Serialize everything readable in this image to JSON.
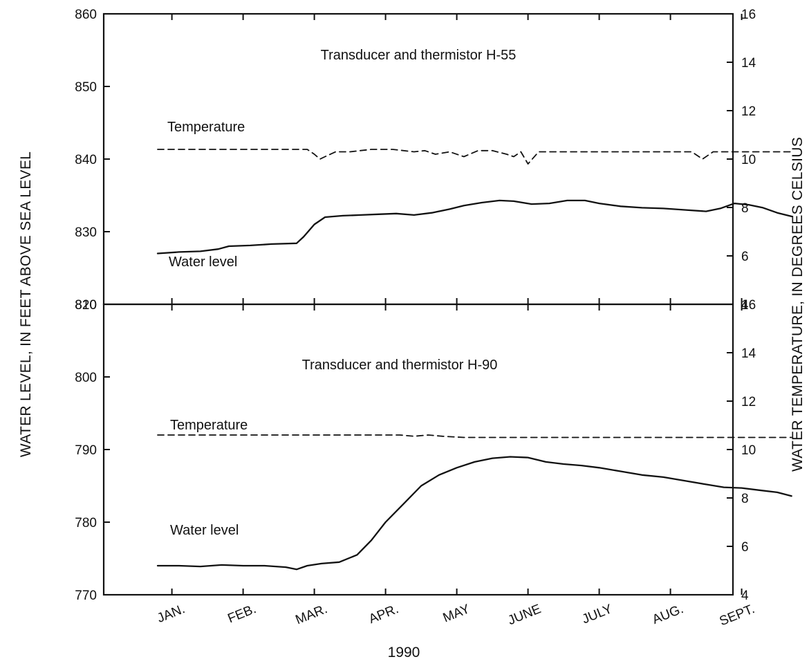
{
  "figure": {
    "left_axis_title": "WATER LEVEL, IN FEET ABOVE SEA LEVEL",
    "right_axis_title": "WATER TEMPERATURE, IN DEGREES CELSIUS",
    "year_label": "1990",
    "month_labels": [
      "JAN.",
      "FEB.",
      "MAR.",
      "APR.",
      "MAY",
      "JUNE",
      "JULY",
      "AUG.",
      "SEPT."
    ]
  },
  "chart_data": [
    {
      "type": "line",
      "title": "Transducer and thermistor H-55",
      "x_axis": {
        "type": "month",
        "range": [
          0,
          8.95
        ]
      },
      "left_axis": {
        "range": [
          820,
          860
        ],
        "ticks": [
          820,
          830,
          840,
          850,
          860
        ]
      },
      "right_axis": {
        "range": [
          4,
          16
        ],
        "ticks": [
          4,
          6,
          8,
          10,
          12,
          14,
          16
        ]
      },
      "series": [
        {
          "name": "Temperature",
          "axis": "right",
          "style": "dashed",
          "points": [
            [
              0.0,
              10.4
            ],
            [
              1.0,
              10.4
            ],
            [
              2.1,
              10.4
            ],
            [
              2.2,
              10.2
            ],
            [
              2.28,
              10.0
            ],
            [
              2.35,
              10.1
            ],
            [
              2.5,
              10.3
            ],
            [
              2.7,
              10.3
            ],
            [
              3.0,
              10.4
            ],
            [
              3.3,
              10.4
            ],
            [
              3.6,
              10.3
            ],
            [
              3.75,
              10.35
            ],
            [
              3.9,
              10.2
            ],
            [
              4.1,
              10.3
            ],
            [
              4.3,
              10.1
            ],
            [
              4.5,
              10.35
            ],
            [
              4.7,
              10.35
            ],
            [
              4.9,
              10.2
            ],
            [
              5.0,
              10.1
            ],
            [
              5.1,
              10.3
            ],
            [
              5.2,
              9.8
            ],
            [
              5.35,
              10.3
            ],
            [
              5.6,
              10.3
            ],
            [
              5.8,
              10.3
            ],
            [
              6.0,
              10.3
            ],
            [
              6.5,
              10.3
            ],
            [
              7.0,
              10.3
            ],
            [
              7.5,
              10.3
            ],
            [
              7.65,
              10.0
            ],
            [
              7.8,
              10.3
            ],
            [
              8.3,
              10.3
            ],
            [
              8.9,
              10.3
            ]
          ]
        },
        {
          "name": "Water level",
          "axis": "left",
          "style": "solid",
          "points": [
            [
              0.0,
              827.0
            ],
            [
              0.3,
              827.2
            ],
            [
              0.6,
              827.3
            ],
            [
              0.85,
              827.6
            ],
            [
              1.0,
              828.0
            ],
            [
              1.3,
              828.1
            ],
            [
              1.6,
              828.3
            ],
            [
              1.95,
              828.4
            ],
            [
              2.05,
              829.3
            ],
            [
              2.2,
              831.0
            ],
            [
              2.35,
              832.0
            ],
            [
              2.6,
              832.2
            ],
            [
              2.85,
              832.3
            ],
            [
              3.1,
              832.4
            ],
            [
              3.35,
              832.5
            ],
            [
              3.6,
              832.3
            ],
            [
              3.85,
              832.6
            ],
            [
              4.1,
              833.1
            ],
            [
              4.3,
              833.6
            ],
            [
              4.55,
              834.0
            ],
            [
              4.8,
              834.3
            ],
            [
              5.0,
              834.2
            ],
            [
              5.25,
              833.8
            ],
            [
              5.5,
              833.9
            ],
            [
              5.75,
              834.3
            ],
            [
              6.0,
              834.3
            ],
            [
              6.2,
              833.9
            ],
            [
              6.5,
              833.5
            ],
            [
              6.8,
              833.3
            ],
            [
              7.1,
              833.2
            ],
            [
              7.4,
              833.0
            ],
            [
              7.7,
              832.8
            ],
            [
              7.9,
              833.2
            ],
            [
              8.1,
              833.9
            ],
            [
              8.3,
              833.7
            ],
            [
              8.5,
              833.3
            ],
            [
              8.7,
              832.6
            ],
            [
              8.9,
              832.1
            ]
          ]
        }
      ]
    },
    {
      "type": "line",
      "title": "Transducer and thermistor H-90",
      "x_axis": {
        "type": "month",
        "range": [
          0,
          8.95
        ]
      },
      "left_axis": {
        "range": [
          770,
          810
        ],
        "ticks": [
          770,
          780,
          790,
          800,
          810
        ]
      },
      "right_axis": {
        "range": [
          4,
          16
        ],
        "ticks": [
          4,
          6,
          8,
          10,
          12,
          14,
          16
        ]
      },
      "series": [
        {
          "name": "Temperature",
          "axis": "right",
          "style": "dashed",
          "points": [
            [
              0.0,
              10.6
            ],
            [
              1.0,
              10.6
            ],
            [
              2.0,
              10.6
            ],
            [
              3.0,
              10.6
            ],
            [
              3.4,
              10.6
            ],
            [
              3.6,
              10.55
            ],
            [
              3.8,
              10.6
            ],
            [
              4.0,
              10.55
            ],
            [
              4.3,
              10.5
            ],
            [
              4.6,
              10.5
            ],
            [
              5.0,
              10.5
            ],
            [
              6.0,
              10.5
            ],
            [
              7.0,
              10.5
            ],
            [
              8.0,
              10.5
            ],
            [
              8.9,
              10.5
            ]
          ]
        },
        {
          "name": "Water level",
          "axis": "left",
          "style": "solid",
          "points": [
            [
              0.0,
              774.0
            ],
            [
              0.3,
              774.0
            ],
            [
              0.6,
              773.9
            ],
            [
              0.9,
              774.1
            ],
            [
              1.2,
              774.0
            ],
            [
              1.5,
              774.0
            ],
            [
              1.8,
              773.8
            ],
            [
              1.95,
              773.5
            ],
            [
              2.1,
              774.0
            ],
            [
              2.3,
              774.3
            ],
            [
              2.55,
              774.5
            ],
            [
              2.8,
              775.5
            ],
            [
              3.0,
              777.5
            ],
            [
              3.2,
              780.0
            ],
            [
              3.45,
              782.5
            ],
            [
              3.7,
              785.0
            ],
            [
              3.95,
              786.5
            ],
            [
              4.2,
              787.5
            ],
            [
              4.45,
              788.3
            ],
            [
              4.7,
              788.8
            ],
            [
              4.95,
              789.0
            ],
            [
              5.2,
              788.9
            ],
            [
              5.45,
              788.3
            ],
            [
              5.7,
              788.0
            ],
            [
              5.95,
              787.8
            ],
            [
              6.2,
              787.5
            ],
            [
              6.5,
              787.0
            ],
            [
              6.8,
              786.5
            ],
            [
              7.1,
              786.2
            ],
            [
              7.4,
              785.7
            ],
            [
              7.7,
              785.2
            ],
            [
              7.95,
              784.8
            ],
            [
              8.2,
              784.7
            ],
            [
              8.45,
              784.4
            ],
            [
              8.7,
              784.1
            ],
            [
              8.9,
              783.6
            ]
          ]
        }
      ]
    }
  ]
}
